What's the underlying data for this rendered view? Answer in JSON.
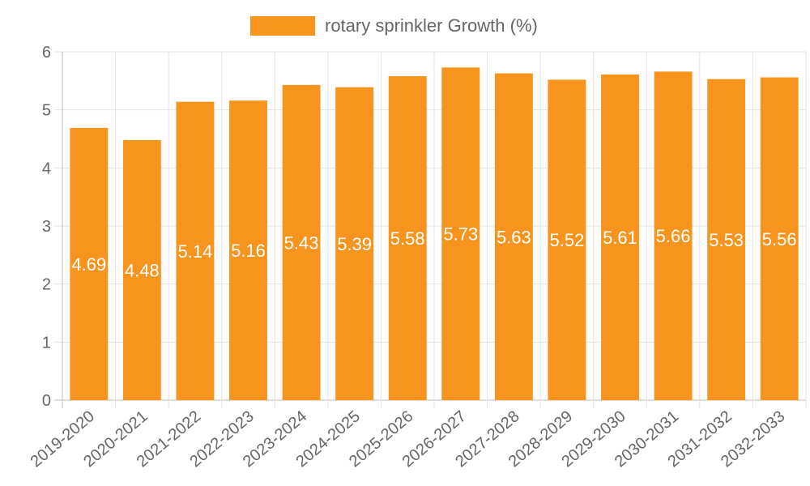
{
  "chart_data": {
    "type": "bar",
    "categories": [
      "2019-2020",
      "2020-2021",
      "2021-2022",
      "2022-2023",
      "2023-2024",
      "2024-2025",
      "2025-2026",
      "2026-2027",
      "2027-2028",
      "2028-2029",
      "2029-2030",
      "2030-2031",
      "2031-2032",
      "2032-2033"
    ],
    "series": [
      {
        "name": "rotary sprinkler Growth (%)",
        "color": "#f7941d",
        "values": [
          4.69,
          4.48,
          5.14,
          5.16,
          5.43,
          5.39,
          5.58,
          5.73,
          5.63,
          5.52,
          5.61,
          5.66,
          5.53,
          5.56
        ]
      }
    ],
    "yticks": [
      0,
      1,
      2,
      3,
      4,
      5,
      6
    ],
    "ylim": [
      0,
      6
    ],
    "grid": true,
    "legend_position": "top-center",
    "data_labels": true
  }
}
